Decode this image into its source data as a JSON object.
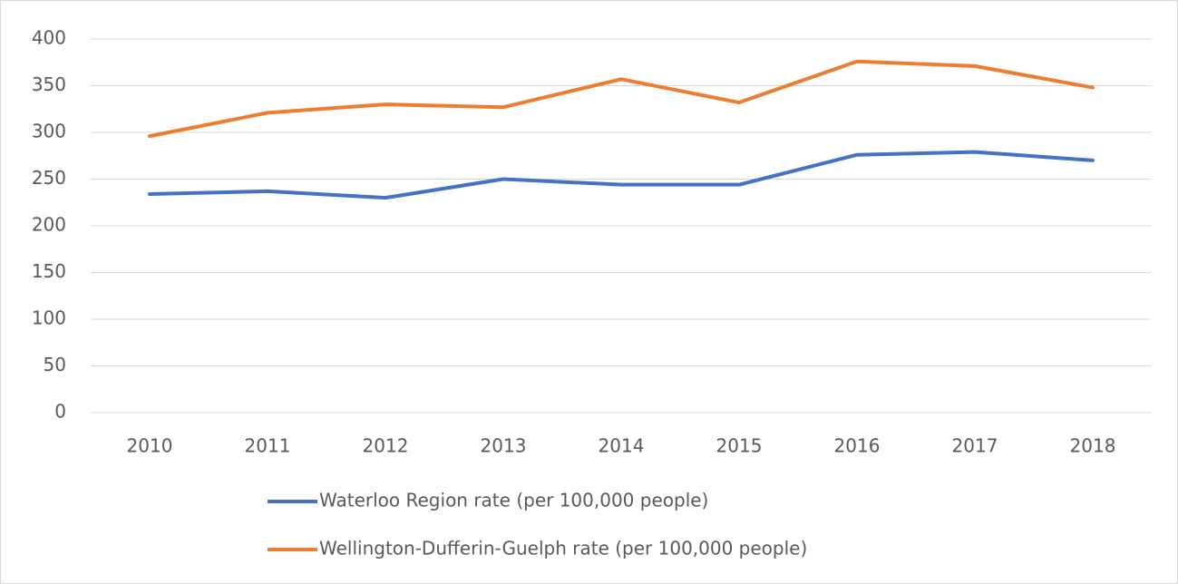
{
  "chart_data": {
    "type": "line",
    "categories": [
      "2010",
      "2011",
      "2012",
      "2013",
      "2014",
      "2015",
      "2016",
      "2017",
      "2018"
    ],
    "series": [
      {
        "name": "Waterloo Region rate (per 100,000 people)",
        "color": "#4472c4",
        "values": [
          234,
          237,
          230,
          250,
          244,
          244,
          276,
          279,
          270
        ]
      },
      {
        "name": "Wellington-Dufferin-Guelph rate (per 100,000 people)",
        "color": "#ed7d31",
        "values": [
          296,
          321,
          330,
          327,
          357,
          332,
          376,
          371,
          348
        ]
      }
    ],
    "ylim": [
      0,
      400
    ],
    "yticks": [
      0,
      50,
      100,
      150,
      200,
      250,
      300,
      350,
      400
    ],
    "grid": true,
    "legend": "bottom"
  }
}
